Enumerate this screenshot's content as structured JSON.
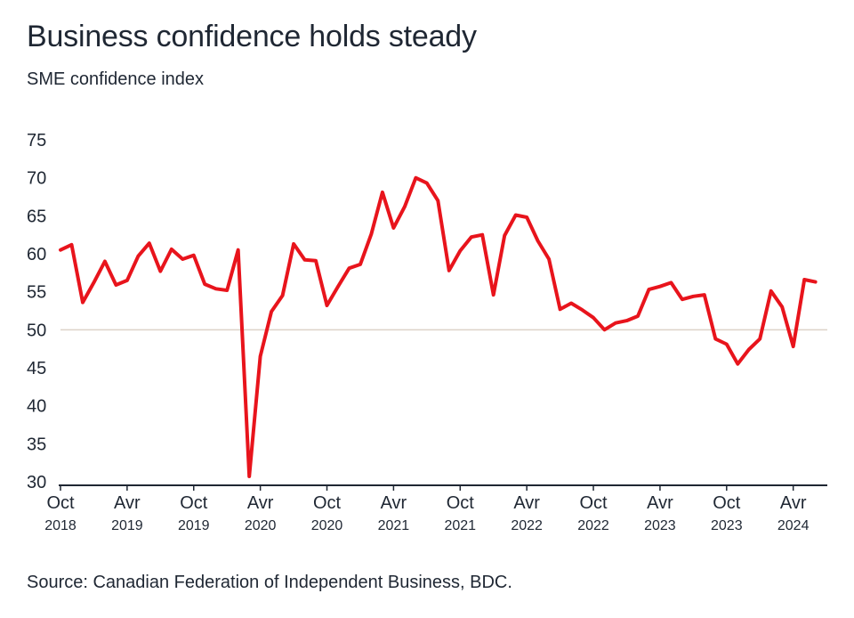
{
  "title": "Business confidence holds steady",
  "subtitle": "SME confidence index",
  "source": "Source: Canadian Federation of Independent Business, BDC.",
  "colors": {
    "line": "#e8141c",
    "reference": "#ddd2c8",
    "axis": "#1f2733"
  },
  "chart_data": {
    "type": "line",
    "title": "Business confidence holds steady",
    "ylabel": "SME confidence index",
    "xlabel": "",
    "ylim": [
      30,
      75
    ],
    "yticks": [
      75,
      70,
      65,
      60,
      55,
      50,
      45,
      40,
      35,
      30
    ],
    "reference_line": 50,
    "x_start": "2018-10",
    "x_ticks": [
      {
        "index": 0,
        "month": "Oct",
        "year": "2018"
      },
      {
        "index": 6,
        "month": "Avr",
        "year": "2019"
      },
      {
        "index": 12,
        "month": "Oct",
        "year": "2019"
      },
      {
        "index": 18,
        "month": "Avr",
        "year": "2020"
      },
      {
        "index": 24,
        "month": "Oct",
        "year": "2020"
      },
      {
        "index": 30,
        "month": "Avr",
        "year": "2021"
      },
      {
        "index": 36,
        "month": "Oct",
        "year": "2021"
      },
      {
        "index": 42,
        "month": "Avr",
        "year": "2022"
      },
      {
        "index": 48,
        "month": "Oct",
        "year": "2022"
      },
      {
        "index": 54,
        "month": "Avr",
        "year": "2023"
      },
      {
        "index": 60,
        "month": "Oct",
        "year": "2023"
      },
      {
        "index": 66,
        "month": "Avr",
        "year": "2024"
      }
    ],
    "series": [
      {
        "name": "SME confidence index",
        "values": [
          60.5,
          61.2,
          53.6,
          56.2,
          59.0,
          55.9,
          56.5,
          59.7,
          61.4,
          57.7,
          60.6,
          59.3,
          59.8,
          56.0,
          55.4,
          55.2,
          60.5,
          30.7,
          46.5,
          52.4,
          54.5,
          61.3,
          59.2,
          59.1,
          53.2,
          55.7,
          58.1,
          58.6,
          62.6,
          68.1,
          63.4,
          66.2,
          70.0,
          69.3,
          67.0,
          57.8,
          60.4,
          62.2,
          62.5,
          54.6,
          62.4,
          65.1,
          64.8,
          61.7,
          59.3,
          52.7,
          53.5,
          52.6,
          51.6,
          50.0,
          50.9,
          51.2,
          51.8,
          55.3,
          55.7,
          56.2,
          54.0,
          54.4,
          54.6,
          48.8,
          48.1,
          45.5,
          47.4,
          48.8,
          55.1,
          53.0,
          47.8,
          56.6,
          56.3
        ]
      }
    ]
  }
}
